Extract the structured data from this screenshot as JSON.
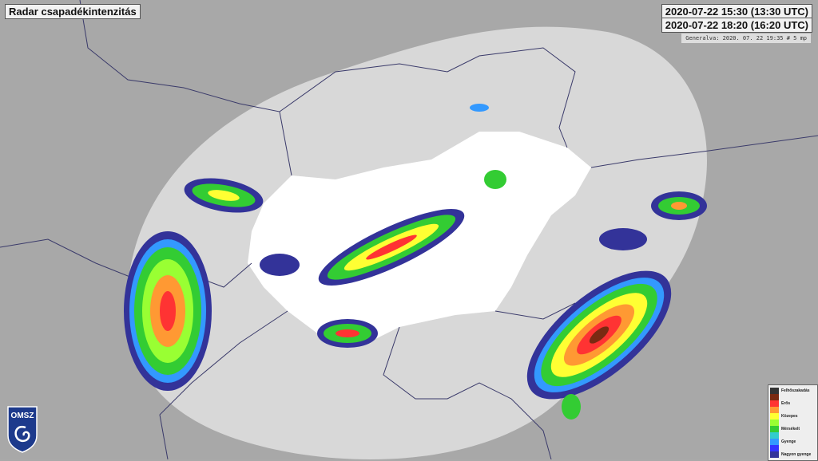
{
  "title": "Radar csapadékintenzitás",
  "time_start": "2020-07-22 15:30 (13:30 UTC)",
  "time_end": "2020-07-22 18:20 (16:20 UTC)",
  "generated": "Generalva: 2020. 07. 22 19:35 # 5 mp",
  "logo": "OMSZ",
  "legend": [
    {
      "color": "#333333",
      "label": "Felhőszakadás"
    },
    {
      "color": "#7a2a12",
      "label": ""
    },
    {
      "color": "#ff3333",
      "label": "Erős"
    },
    {
      "color": "#ff9933",
      "label": ""
    },
    {
      "color": "#ffff33",
      "label": "Közepes"
    },
    {
      "color": "#99ff33",
      "label": ""
    },
    {
      "color": "#33cc33",
      "label": "Mérsékelt"
    },
    {
      "color": "#33cccc",
      "label": ""
    },
    {
      "color": "#3399ff",
      "label": "Gyenge"
    },
    {
      "color": "#3333ff",
      "label": ""
    },
    {
      "color": "#333399",
      "label": "Nagyon gyenge"
    }
  ]
}
